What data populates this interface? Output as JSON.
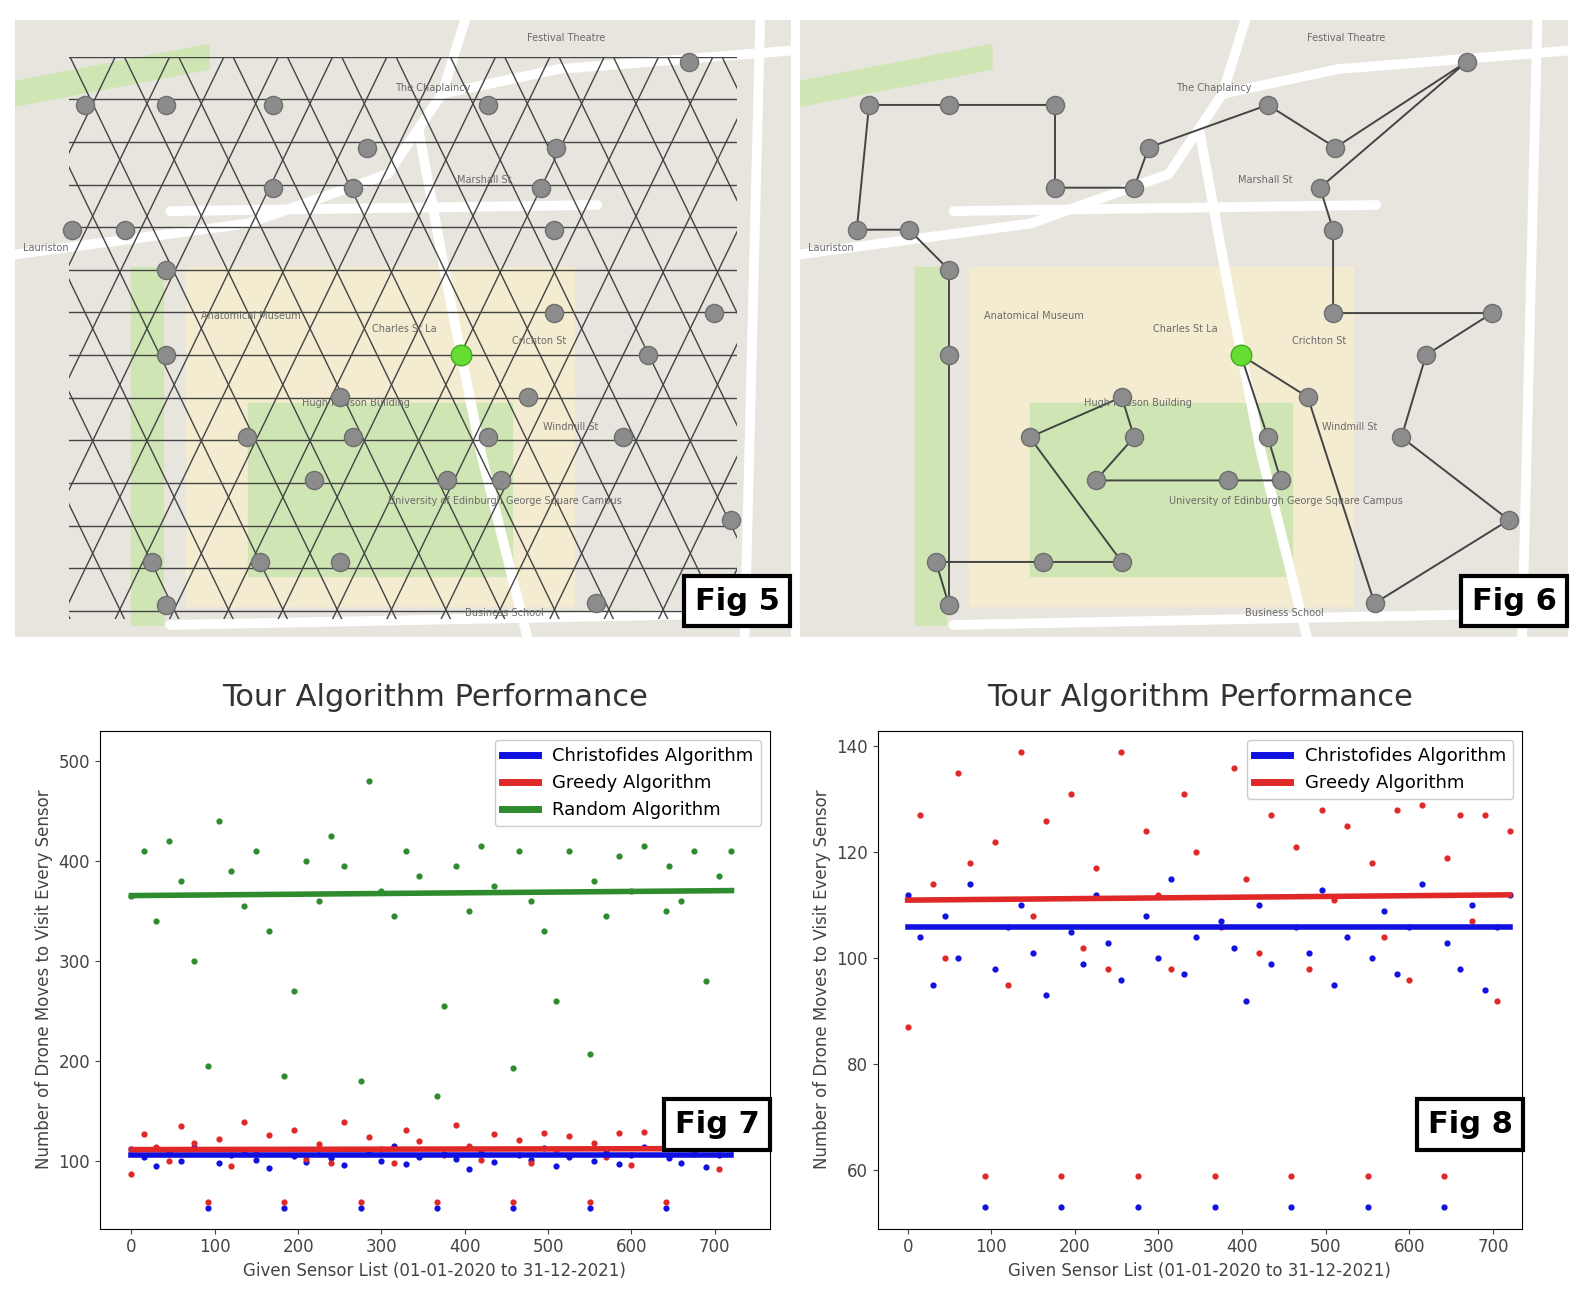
{
  "map": {
    "xlim": [
      0,
      100
    ],
    "ylim": [
      100,
      0
    ],
    "sensors": [
      [
        9.0,
        13.8
      ],
      [
        19.4,
        13.8
      ],
      [
        33.2,
        13.8
      ],
      [
        60.9,
        13.8
      ],
      [
        86.8,
        6.8
      ],
      [
        45.4,
        20.7
      ],
      [
        69.7,
        20.7
      ],
      [
        33.2,
        27.2
      ],
      [
        43.5,
        27.2
      ],
      [
        67.7,
        27.2
      ],
      [
        7.4,
        34.0
      ],
      [
        14.2,
        34.0
      ],
      [
        69.4,
        34.0
      ],
      [
        19.4,
        40.5
      ],
      [
        69.4,
        47.5
      ],
      [
        90.1,
        47.5
      ],
      [
        19.4,
        54.3
      ],
      [
        81.5,
        54.3
      ],
      [
        66.1,
        61.1
      ],
      [
        41.9,
        61.1
      ],
      [
        29.9,
        67.6
      ],
      [
        43.5,
        67.6
      ],
      [
        60.9,
        67.6
      ],
      [
        78.3,
        67.6
      ],
      [
        38.5,
        74.6
      ],
      [
        55.7,
        74.6
      ],
      [
        62.6,
        74.6
      ],
      [
        92.3,
        81.0
      ],
      [
        17.7,
        87.8
      ],
      [
        31.6,
        87.8
      ],
      [
        41.9,
        87.8
      ],
      [
        19.4,
        94.8
      ],
      [
        74.8,
        94.5
      ]
    ],
    "start": [
      57.4,
      54.3
    ],
    "tour": [
      22,
      26,
      25,
      24,
      21,
      19,
      20,
      30,
      29,
      28,
      31,
      16,
      13,
      11,
      10,
      0,
      1,
      2,
      7,
      8,
      5,
      3,
      6,
      4,
      9,
      12,
      14,
      15,
      17,
      23,
      27,
      32,
      18
    ],
    "labels": [
      {
        "text": "Lauriston",
        "x": 1,
        "y": 37
      },
      {
        "text": "Marshall St",
        "x": 57,
        "y": 26
      },
      {
        "text": "Crichton St",
        "x": 64,
        "y": 52
      },
      {
        "text": "Windmill St",
        "x": 68,
        "y": 66
      },
      {
        "text": "Charles St La",
        "x": 46,
        "y": 50
      },
      {
        "text": "Hugh Robson Building",
        "x": 37,
        "y": 62
      },
      {
        "text": "Anatomical Museum",
        "x": 24,
        "y": 48
      },
      {
        "text": "University of Edinburgh George Square Campus",
        "x": 48,
        "y": 78
      },
      {
        "text": "Business School",
        "x": 58,
        "y": 96
      },
      {
        "text": "The Chaplaincy",
        "x": 49,
        "y": 11
      },
      {
        "text": "Festival Theatre",
        "x": 66,
        "y": 3
      }
    ]
  },
  "maps": [
    {
      "kind": "grid",
      "label": "Fig 5"
    },
    {
      "kind": "tour",
      "label": "Fig 6"
    }
  ],
  "chart_data": [
    {
      "type": "scatter",
      "title": "Tour Algorithm Performance",
      "label": "Fig 7",
      "x_label": "Given Sensor List (01-01-2020 to 31-12-2021)",
      "y_label": "Number of Drone Moves to Visit Every Sensor",
      "x": [
        0,
        15,
        30,
        45,
        60,
        75,
        92,
        105,
        120,
        135,
        150,
        165,
        183,
        195,
        210,
        225,
        240,
        255,
        275,
        285,
        300,
        315,
        330,
        345,
        367,
        375,
        390,
        405,
        420,
        435,
        458,
        465,
        480,
        495,
        510,
        525,
        550,
        555,
        570,
        585,
        600,
        615,
        641,
        645,
        660,
        675,
        690,
        705,
        720
      ],
      "xlim": [
        -38,
        766
      ],
      "xticks": [
        0,
        100,
        200,
        300,
        400,
        500,
        600,
        700
      ],
      "ylim": [
        32,
        530
      ],
      "yticks": [
        100,
        200,
        300,
        400,
        500
      ],
      "grid": false,
      "legend": "upper right",
      "series": [
        {
          "name": "Christofides Algorithm",
          "color": "#1010e0",
          "trend": [
            106,
            106
          ],
          "values": [
            112,
            104,
            95,
            108,
            100,
            114,
            53,
            98,
            106,
            110,
            101,
            93,
            53,
            105,
            99,
            112,
            103,
            96,
            53,
            108,
            100,
            115,
            97,
            104,
            53,
            107,
            102,
            92,
            110,
            99,
            53,
            106,
            101,
            113,
            95,
            104,
            53,
            100,
            109,
            97,
            106,
            114,
            53,
            103,
            98,
            110,
            94,
            106,
            112
          ]
        },
        {
          "name": "Greedy Algorithm",
          "color": "#e02828",
          "trend": [
            111,
            112
          ],
          "values": [
            87,
            127,
            114,
            100,
            135,
            118,
            59,
            122,
            95,
            139,
            108,
            126,
            59,
            131,
            102,
            117,
            98,
            139,
            59,
            124,
            112,
            98,
            131,
            120,
            59,
            106,
            136,
            115,
            101,
            127,
            59,
            121,
            98,
            128,
            111,
            125,
            59,
            118,
            104,
            128,
            96,
            129,
            59,
            119,
            127,
            107,
            127,
            92,
            124
          ]
        },
        {
          "name": "Random Algorithm",
          "color": "#2e8b2e",
          "trend": [
            365,
            370
          ],
          "values": [
            365,
            410,
            340,
            420,
            380,
            300,
            195,
            440,
            390,
            355,
            410,
            330,
            185,
            270,
            400,
            360,
            425,
            395,
            180,
            480,
            370,
            345,
            410,
            385,
            165,
            255,
            395,
            350,
            415,
            375,
            193,
            410,
            360,
            330,
            260,
            410,
            207,
            380,
            345,
            405,
            370,
            415,
            350,
            395,
            360,
            410,
            280,
            385,
            410
          ]
        }
      ]
    },
    {
      "type": "scatter",
      "title": "Tour Algorithm Performance",
      "label": "Fig 8",
      "x_label": "Given Sensor List (01-01-2020 to 31-12-2021)",
      "y_label": "Number of Drone Moves to Visit Every Sensor",
      "x": [
        0,
        15,
        30,
        45,
        60,
        75,
        92,
        105,
        120,
        135,
        150,
        165,
        183,
        195,
        210,
        225,
        240,
        255,
        275,
        285,
        300,
        315,
        330,
        345,
        367,
        375,
        390,
        405,
        420,
        435,
        458,
        465,
        480,
        495,
        510,
        525,
        550,
        555,
        570,
        585,
        600,
        615,
        641,
        645,
        660,
        675,
        690,
        705,
        720
      ],
      "xlim": [
        -36,
        735
      ],
      "xticks": [
        0,
        100,
        200,
        300,
        400,
        500,
        600,
        700
      ],
      "ylim": [
        49,
        143
      ],
      "yticks": [
        60,
        80,
        100,
        120,
        140
      ],
      "grid": false,
      "legend": "upper right",
      "series": [
        {
          "name": "Christofides Algorithm",
          "color": "#1010e0",
          "trend": [
            106,
            106
          ],
          "values": [
            112,
            104,
            95,
            108,
            100,
            114,
            53,
            98,
            106,
            110,
            101,
            93,
            53,
            105,
            99,
            112,
            103,
            96,
            53,
            108,
            100,
            115,
            97,
            104,
            53,
            107,
            102,
            92,
            110,
            99,
            53,
            106,
            101,
            113,
            95,
            104,
            53,
            100,
            109,
            97,
            106,
            114,
            53,
            103,
            98,
            110,
            94,
            106,
            112
          ]
        },
        {
          "name": "Greedy Algorithm",
          "color": "#e02828",
          "trend": [
            111,
            112
          ],
          "values": [
            87,
            127,
            114,
            100,
            135,
            118,
            59,
            122,
            95,
            139,
            108,
            126,
            59,
            131,
            102,
            117,
            98,
            139,
            59,
            124,
            112,
            98,
            131,
            120,
            59,
            106,
            136,
            115,
            101,
            127,
            59,
            121,
            98,
            128,
            111,
            125,
            59,
            118,
            104,
            128,
            96,
            129,
            59,
            119,
            127,
            107,
            127,
            92,
            124
          ]
        }
      ]
    }
  ]
}
